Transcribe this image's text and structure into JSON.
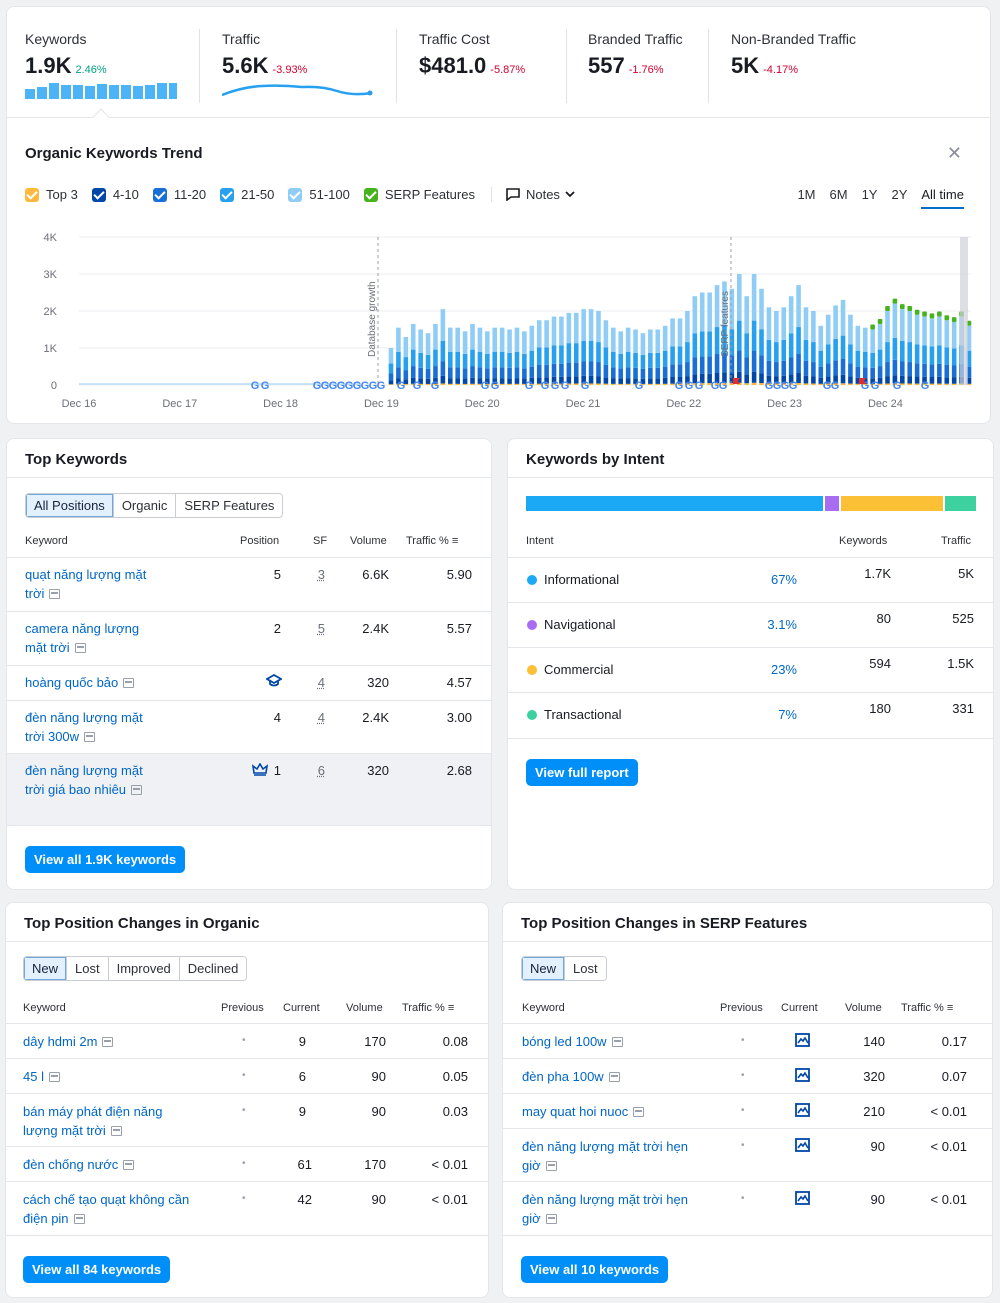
{
  "metrics": [
    {
      "label": "Keywords",
      "value": "1.9K",
      "change": "2.46%"
    },
    {
      "label": "Traffic",
      "value": "5.6K",
      "change": "-3.93%"
    },
    {
      "label": "Traffic Cost",
      "value": "$481.0",
      "change": "-5.87%"
    },
    {
      "label": "Branded Traffic",
      "value": "557",
      "change": "-1.76%"
    },
    {
      "label": "Non-Branded Traffic",
      "value": "5K",
      "change": "-4.17%"
    }
  ],
  "trend": {
    "title": "Organic Keywords Trend",
    "legend": [
      {
        "label": "Top 3",
        "color": "#ffb93e"
      },
      {
        "label": "4-10",
        "color": "#0047a8"
      },
      {
        "label": "11-20",
        "color": "#1a6fd6"
      },
      {
        "label": "21-50",
        "color": "#27a0f0"
      },
      {
        "label": "51-100",
        "color": "#8fcdf7"
      },
      {
        "label": "SERP Features",
        "color": "#45b21e"
      }
    ],
    "notes_label": "Notes",
    "periods": [
      "1M",
      "6M",
      "1Y",
      "2Y",
      "All time"
    ],
    "active_period": "All time"
  },
  "chart_data": {
    "type": "bar",
    "stacked": true,
    "x_ticks": [
      "Dec 16",
      "Dec 17",
      "Dec 18",
      "Dec 19",
      "Dec 20",
      "Dec 21",
      "Dec 22",
      "Dec 23",
      "Dec 24"
    ],
    "y_ticks": [
      "0",
      "1K",
      "2K",
      "3K",
      "4K"
    ],
    "ylim": [
      0,
      4000
    ],
    "annotations": [
      "Database growth",
      "SERP features"
    ],
    "series": [
      {
        "name": "Top 3",
        "color": "#ffb93e"
      },
      {
        "name": "4-10",
        "color": "#0047a8"
      },
      {
        "name": "11-20",
        "color": "#1a6fd6"
      },
      {
        "name": "21-50",
        "color": "#27a0f0"
      },
      {
        "name": "51-100",
        "color": "#8fcdf7"
      },
      {
        "name": "SERP Features",
        "color": "#45b21e"
      }
    ],
    "totals": [
      1000,
      1550,
      1300,
      1650,
      1500,
      1400,
      1650,
      2050,
      1550,
      1550,
      1450,
      1650,
      1550,
      1450,
      1550,
      1550,
      1500,
      1550,
      1450,
      1600,
      1750,
      1750,
      1850,
      1850,
      1950,
      1950,
      2050,
      2050,
      2000,
      1750,
      1550,
      1450,
      1550,
      1500,
      1400,
      1500,
      1500,
      1600,
      1800,
      1800,
      2000,
      2400,
      2500,
      2500,
      2700,
      2800,
      2600,
      3000,
      2400,
      3000,
      2600,
      2100,
      2000,
      2100,
      2400,
      2700,
      2100,
      2000,
      1600,
      1900,
      2150,
      2300,
      1900,
      1600,
      1550,
      1500,
      1650,
      2000,
      2200,
      2050,
      2000,
      1900,
      1850,
      1800,
      1850,
      1750,
      1700,
      1850,
      1600
    ],
    "serp_marks": [
      0,
      0,
      0,
      0,
      0,
      0,
      0,
      0,
      0,
      0,
      0,
      0,
      0,
      0,
      0,
      0,
      0,
      0,
      0,
      0,
      0,
      0,
      0,
      0,
      0,
      0,
      0,
      0,
      0,
      0,
      0,
      0,
      0,
      0,
      0,
      0,
      0,
      0,
      0,
      0,
      0,
      0,
      0,
      0,
      0,
      0,
      0,
      0,
      0,
      0,
      0,
      0,
      0,
      0,
      0,
      0,
      0,
      0,
      0,
      0,
      0,
      0,
      0,
      0,
      0,
      1,
      1,
      1,
      1,
      1,
      1,
      1,
      1,
      1,
      1,
      1,
      1,
      1,
      1
    ]
  },
  "top_keywords": {
    "title": "Top Keywords",
    "tabs": [
      "All Positions",
      "Organic",
      "SERP Features"
    ],
    "headers": {
      "keyword": "Keyword",
      "position": "Position",
      "sf": "SF",
      "volume": "Volume",
      "traffic": "Traffic %"
    },
    "rows": [
      {
        "keyword": "quạt năng lượng mặt trời",
        "position": "5",
        "sf": "3",
        "volume": "6.6K",
        "traffic": "5.90",
        "icon": ""
      },
      {
        "keyword": "camera năng lượng mặt trời",
        "position": "2",
        "sf": "5",
        "volume": "2.4K",
        "traffic": "5.57",
        "icon": ""
      },
      {
        "keyword": "hoàng quốc bảo",
        "position": "",
        "sf": "4",
        "volume": "320",
        "traffic": "4.57",
        "icon": "graduation-cap-icon"
      },
      {
        "keyword": "đèn năng lượng mặt trời 300w",
        "position": "4",
        "sf": "4",
        "volume": "2.4K",
        "traffic": "3.00",
        "icon": ""
      },
      {
        "keyword": "đèn năng lượng mặt trời giá bao nhiêu",
        "position": "1",
        "sf": "6",
        "volume": "320",
        "traffic": "2.68",
        "icon": "crown-icon"
      }
    ],
    "button": "View all 1.9K keywords"
  },
  "intent": {
    "title": "Keywords by Intent",
    "headers": {
      "intent": "Intent",
      "keywords": "Keywords",
      "traffic": "Traffic"
    },
    "bar": [
      {
        "fraction": 0.67,
        "color": "#1ba8f4"
      },
      {
        "fraction": 0.031,
        "color": "#a86cf2"
      },
      {
        "fraction": 0.23,
        "color": "#fbc036"
      },
      {
        "fraction": 0.07,
        "color": "#3dd1a0"
      }
    ],
    "rows": [
      {
        "name": "Informational",
        "color": "#1ba8f4",
        "pct": "67%",
        "keywords": "1.7K",
        "traffic": "5K"
      },
      {
        "name": "Navigational",
        "color": "#a86cf2",
        "pct": "3.1%",
        "keywords": "80",
        "traffic": "525"
      },
      {
        "name": "Commercial",
        "color": "#fbc036",
        "pct": "23%",
        "keywords": "594",
        "traffic": "1.5K"
      },
      {
        "name": "Transactional",
        "color": "#3dd1a0",
        "pct": "7%",
        "keywords": "180",
        "traffic": "331"
      }
    ],
    "button": "View full report"
  },
  "organic_changes": {
    "title": "Top Position Changes in Organic",
    "tabs": [
      "New",
      "Lost",
      "Improved",
      "Declined"
    ],
    "headers": {
      "keyword": "Keyword",
      "previous": "Previous",
      "current": "Current",
      "volume": "Volume",
      "traffic": "Traffic %"
    },
    "rows": [
      {
        "keyword": "dây hdmi 2m",
        "previous": "•",
        "current": "9",
        "volume": "170",
        "traffic": "0.08"
      },
      {
        "keyword": "45 l",
        "previous": "•",
        "current": "6",
        "volume": "90",
        "traffic": "0.05"
      },
      {
        "keyword": "bán máy phát điện năng lượng mặt trời",
        "previous": "•",
        "current": "9",
        "volume": "90",
        "traffic": "0.03"
      },
      {
        "keyword": "đèn chống nước",
        "previous": "•",
        "current": "61",
        "volume": "170",
        "traffic": "< 0.01"
      },
      {
        "keyword": "cách chế tạo quạt không cần điện pin",
        "previous": "•",
        "current": "42",
        "volume": "90",
        "traffic": "< 0.01"
      }
    ],
    "button": "View all 84 keywords"
  },
  "serp_changes": {
    "title": "Top Position Changes in SERP Features",
    "tabs": [
      "New",
      "Lost"
    ],
    "headers": {
      "keyword": "Keyword",
      "previous": "Previous",
      "current": "Current",
      "volume": "Volume",
      "traffic": "Traffic %"
    },
    "rows": [
      {
        "keyword": "bóng led 100w",
        "previous": "•",
        "current_icon": "image-pack-icon",
        "volume": "140",
        "traffic": "0.17"
      },
      {
        "keyword": "đèn pha 100w",
        "previous": "•",
        "current_icon": "image-pack-icon",
        "volume": "320",
        "traffic": "0.07"
      },
      {
        "keyword": "may quat hoi nuoc",
        "previous": "•",
        "current_icon": "image-pack-icon",
        "volume": "210",
        "traffic": "< 0.01"
      },
      {
        "keyword": "đèn năng lượng mặt trời hẹn giờ",
        "previous": "•",
        "current_icon": "image-pack-icon",
        "volume": "90",
        "traffic": "< 0.01"
      },
      {
        "keyword": "đèn năng lượng mặt trời hẹn giờ",
        "previous": "•",
        "current_icon": "image-pack-icon",
        "volume": "90",
        "traffic": "< 0.01"
      }
    ],
    "button": "View all 10 keywords"
  }
}
